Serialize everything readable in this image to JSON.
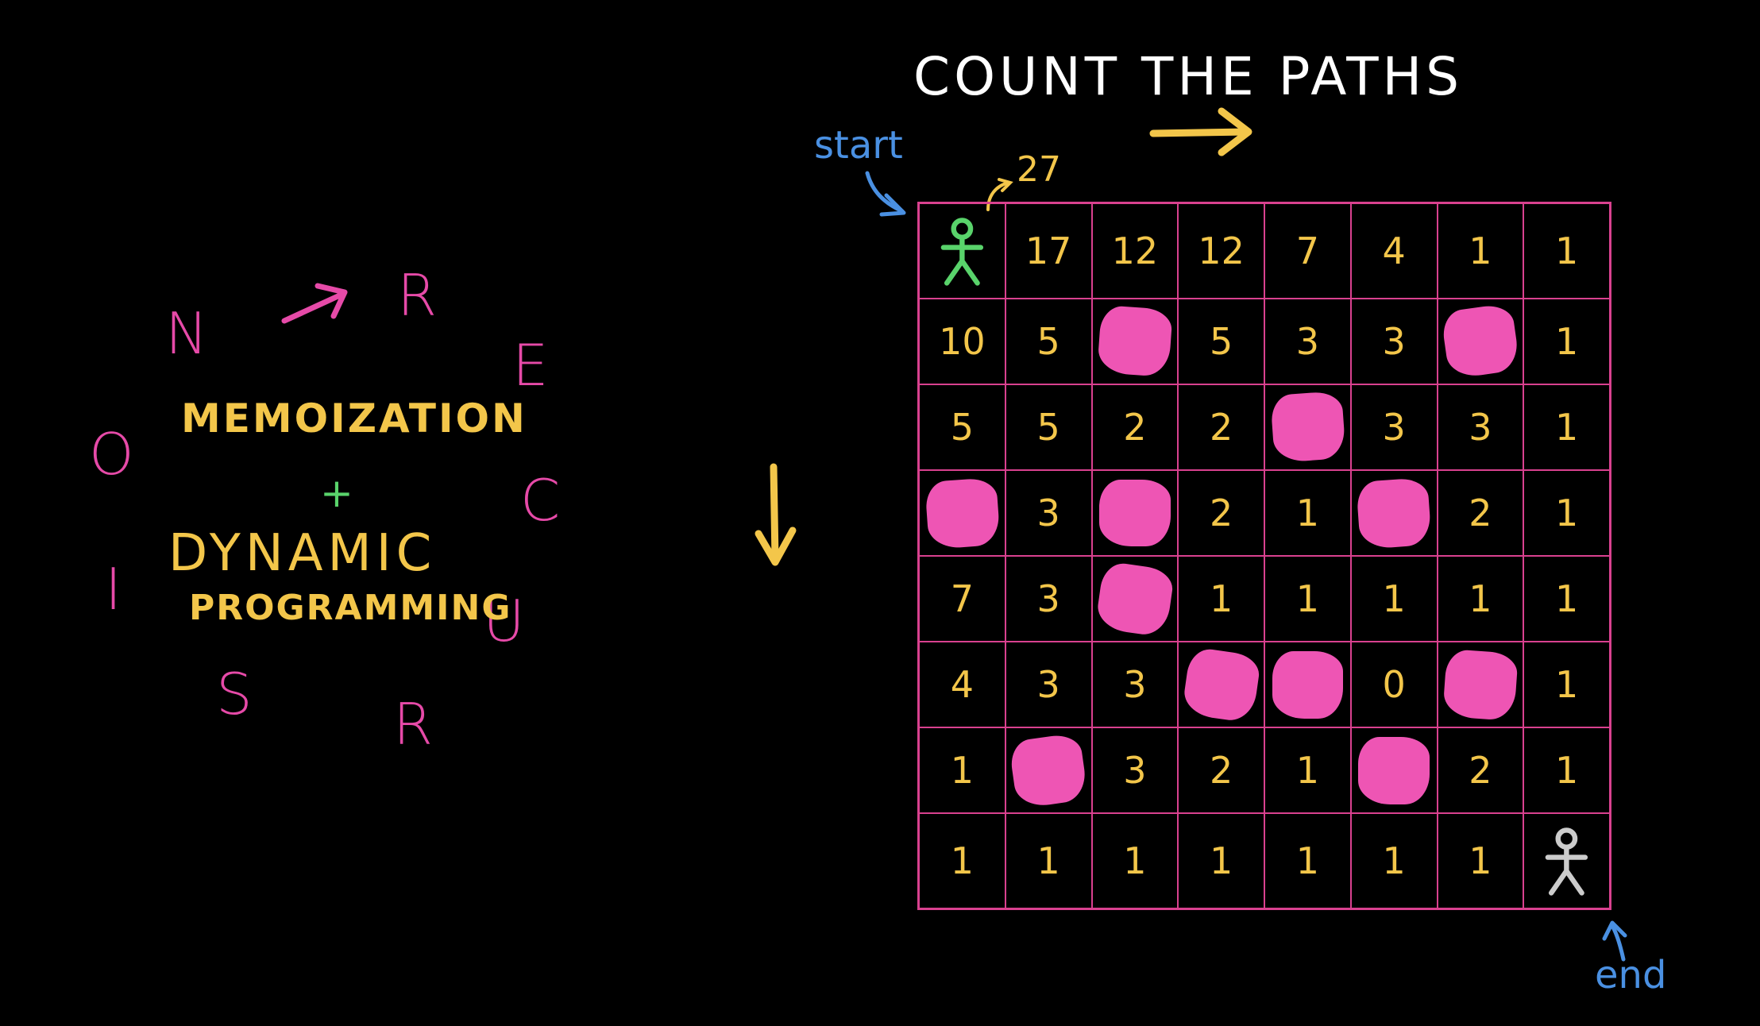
{
  "title": "COUNT THE PATHS",
  "annotations": {
    "start": "start",
    "end": "end",
    "count_at_start": "27"
  },
  "left_panel": {
    "memoization": "MEMOIZATION",
    "plus": "+",
    "dynamic": "DYNAMIC",
    "programming": "PROGRAMMING",
    "ring_letters": [
      "N",
      "R",
      "E",
      "C",
      "U",
      "R",
      "S",
      "I",
      "O"
    ]
  },
  "grid": {
    "rows": [
      [
        "start-figure",
        "17",
        "12",
        "12",
        "7",
        "4",
        "1",
        "1"
      ],
      [
        "10",
        "5",
        "blocked",
        "5",
        "3",
        "3",
        "blocked",
        "1"
      ],
      [
        "5",
        "5",
        "2",
        "2",
        "blocked",
        "3",
        "3",
        "1"
      ],
      [
        "blocked",
        "3",
        "blocked",
        "2",
        "1",
        "blocked",
        "2",
        "1"
      ],
      [
        "7",
        "3",
        "blocked",
        "1",
        "1",
        "1",
        "1",
        "1"
      ],
      [
        "4",
        "3",
        "3",
        "blocked",
        "blocked",
        "0",
        "blocked",
        "1"
      ],
      [
        "1",
        "blocked",
        "3",
        "2",
        "1",
        "blocked",
        "2",
        "1"
      ],
      [
        "1",
        "1",
        "1",
        "1",
        "1",
        "1",
        "1",
        "end-figure"
      ]
    ]
  },
  "colors": {
    "background": "#000000",
    "grid_line": "#d9418f",
    "blocked": "#ee55b4",
    "numbers": "#f3c64a",
    "arrows": "#f3c64a",
    "start_figure": "#59d36b",
    "end_figure": "#cccccc",
    "labels": "#4a90e2",
    "recursion_letters": "#e64aa8",
    "title": "#ffffff"
  }
}
